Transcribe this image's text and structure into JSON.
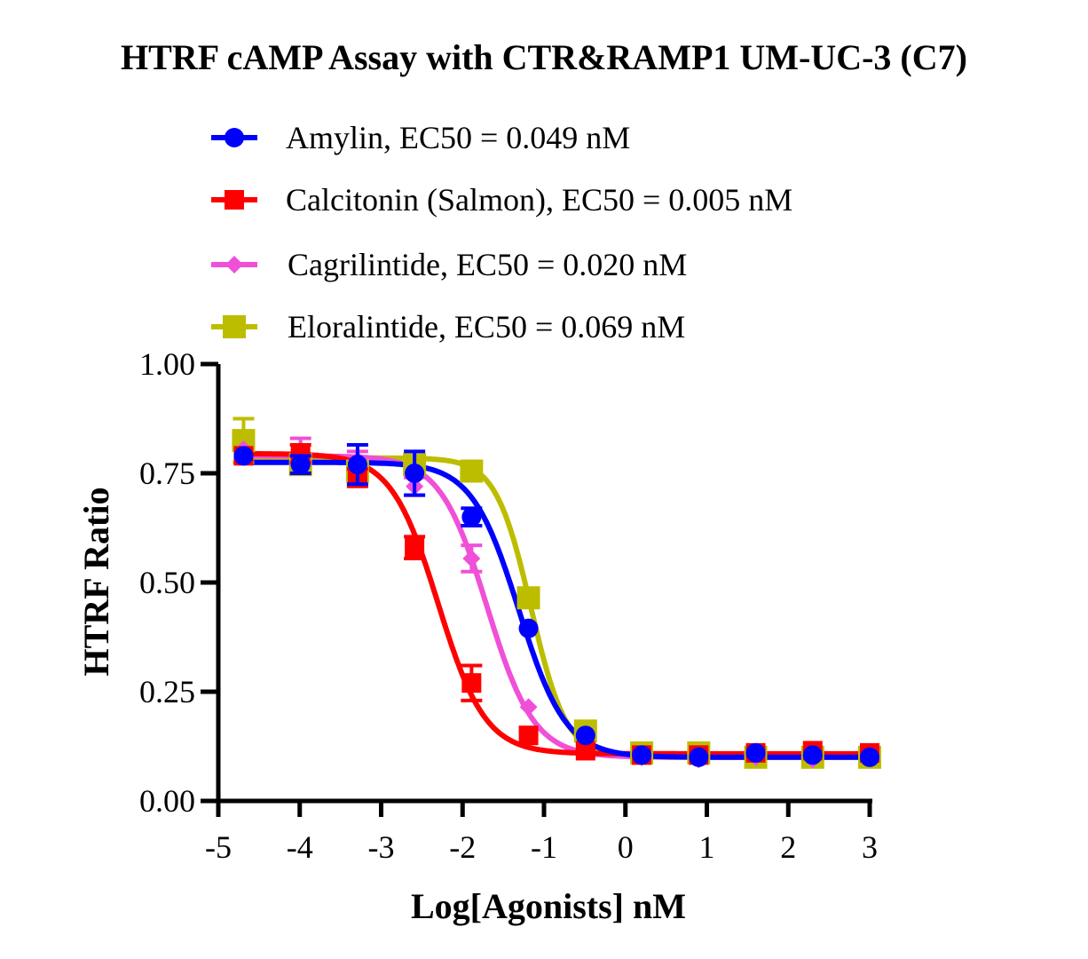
{
  "chart_data": {
    "type": "line",
    "title": "HTRF cAMP Assay with CTR&RAMP1 UM-UC-3 (C7)",
    "xlabel": "Log[Agonists] nM",
    "ylabel": "HTRF Ratio",
    "xlim": [
      -5,
      3
    ],
    "ylim": [
      0,
      1
    ],
    "xticks": [
      "-5",
      "-4",
      "-3",
      "-2",
      "-1",
      "0",
      "1",
      "2",
      "3"
    ],
    "yticks": [
      "0.00",
      "0.25",
      "0.50",
      "0.75",
      "1.00"
    ],
    "grid": false,
    "legend_placement": "top",
    "x": [
      -4.69,
      -3.99,
      -3.29,
      -2.59,
      -1.89,
      -1.19,
      -0.49,
      0.2,
      0.9,
      1.6,
      2.3,
      3.0
    ],
    "series": [
      {
        "name": "Amylin, EC50 = 0.049 nM",
        "color": "#0000ff",
        "marker": "circle",
        "values": [
          0.79,
          0.77,
          0.77,
          0.75,
          0.65,
          0.395,
          0.15,
          0.105,
          0.1,
          0.11,
          0.105,
          0.1
        ],
        "errors": [
          0.01,
          0.02,
          0.045,
          0.05,
          0.02,
          0.01,
          0.01,
          0.005,
          0.005,
          0.005,
          0.005,
          0.005
        ],
        "fit": {
          "top": 0.775,
          "bottom": 0.1,
          "logEC50": -1.31,
          "hill": 1.5
        }
      },
      {
        "name": "Calcitonin (Salmon), EC50 = 0.005 nM",
        "color": "#ff0000",
        "marker": "square",
        "values": [
          0.79,
          0.795,
          0.74,
          0.58,
          0.27,
          0.15,
          0.115,
          0.105,
          0.105,
          0.11,
          0.115,
          0.11
        ],
        "errors": [
          0.01,
          0.02,
          0.02,
          0.025,
          0.04,
          0.01,
          0.01,
          0.005,
          0.005,
          0.005,
          0.005,
          0.005
        ],
        "fit": {
          "top": 0.795,
          "bottom": 0.108,
          "logEC50": -2.3,
          "hill": 1.5
        }
      },
      {
        "name": "Cagrilintide, EC50 = 0.020 nM",
        "color": "#f050d8",
        "marker": "diamond",
        "values": [
          0.805,
          0.8,
          0.78,
          0.72,
          0.555,
          0.215,
          0.12,
          0.1,
          0.095,
          0.1,
          0.095,
          0.1
        ],
        "errors": [
          0.01,
          0.03,
          0.02,
          0.02,
          0.03,
          0.01,
          0.01,
          0.005,
          0.005,
          0.005,
          0.005,
          0.005
        ],
        "fit": {
          "top": 0.79,
          "bottom": 0.1,
          "logEC50": -1.7,
          "hill": 1.5
        }
      },
      {
        "name": "Eloralintide, EC50 = 0.069 nM",
        "color": "#bdbd00",
        "marker": "square",
        "values": [
          0.825,
          0.77,
          0.755,
          0.77,
          0.755,
          0.465,
          0.16,
          0.11,
          0.11,
          0.1,
          0.1,
          0.1
        ],
        "errors": [
          0.05,
          0.02,
          0.02,
          0.01,
          0.01,
          0.01,
          0.01,
          0.005,
          0.005,
          0.005,
          0.005,
          0.005
        ],
        "fit": {
          "top": 0.785,
          "bottom": 0.1,
          "logEC50": -1.16,
          "hill": 2.0
        }
      }
    ]
  }
}
